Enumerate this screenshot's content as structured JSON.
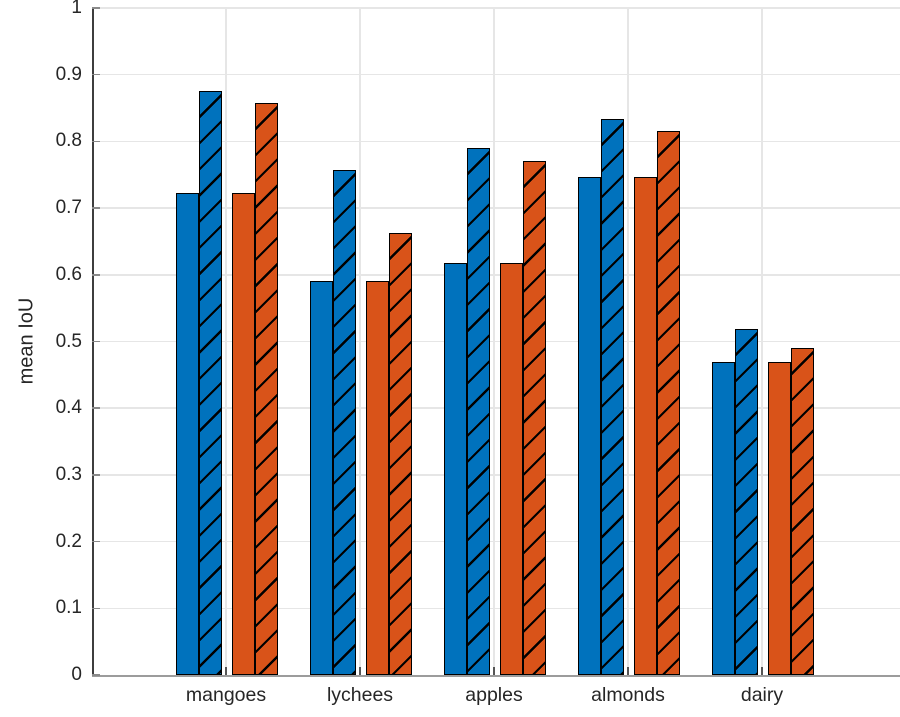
{
  "chart_data": {
    "type": "bar",
    "title": "",
    "xlabel": "",
    "ylabel": "mean IoU",
    "ylim": [
      0,
      1
    ],
    "yticks": [
      0,
      0.1,
      0.2,
      0.3,
      0.4,
      0.5,
      0.6,
      0.7,
      0.8,
      0.9,
      1
    ],
    "ytick_labels": [
      "0",
      "0.1",
      "0.2",
      "0.3",
      "0.4",
      "0.5",
      "0.6",
      "0.7",
      "0.8",
      "0.9",
      "1"
    ],
    "categories": [
      "mangoes",
      "lychees",
      "apples",
      "almonds",
      "dairy"
    ],
    "series": [
      {
        "name": "blue-solid",
        "color": "#0072BD",
        "hatched": false,
        "values": [
          0.723,
          0.59,
          0.618,
          0.746,
          0.469
        ]
      },
      {
        "name": "blue-hatched",
        "color": "#0072BD",
        "hatched": true,
        "values": [
          0.875,
          0.757,
          0.79,
          0.833,
          0.518
        ]
      },
      {
        "name": "orange-solid",
        "color": "#D95319",
        "hatched": false,
        "values": [
          0.723,
          0.59,
          0.618,
          0.746,
          0.469
        ]
      },
      {
        "name": "orange-hatched",
        "color": "#D95319",
        "hatched": true,
        "values": [
          0.858,
          0.663,
          0.77,
          0.815,
          0.49
        ]
      }
    ],
    "grid": true,
    "legend": null,
    "colors": {
      "blue": "#0072BD",
      "orange": "#D95319",
      "grid": "#E6E6E6",
      "axis_text": "#262626",
      "bar_edge": "#000000",
      "background": "#FFFFFF"
    }
  }
}
